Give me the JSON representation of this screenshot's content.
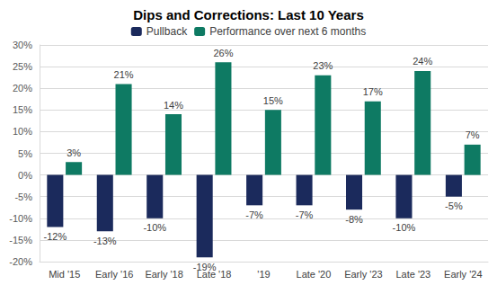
{
  "chart_data": {
    "type": "bar",
    "title": "Dips and Corrections: Last 10 Years",
    "categories": [
      "Mid '15",
      "Early '16",
      "Early '18",
      "Late '18",
      "'19",
      "Late '20",
      "Early '23",
      "Late '23",
      "Early '24"
    ],
    "series": [
      {
        "name": "Pullback",
        "color": "#1B2A5C",
        "values": [
          -12,
          -13,
          -10,
          -19,
          -7,
          -7,
          -8,
          -10,
          -5
        ],
        "value_labels": [
          "-12%",
          "-13%",
          "-10%",
          "-19%",
          "-7%",
          "-7%",
          "-8%",
          "-10%",
          "-5%"
        ]
      },
      {
        "name": "Performance over next 6 months",
        "color": "#0E7A63",
        "values": [
          3,
          21,
          14,
          26,
          15,
          23,
          17,
          24,
          7
        ],
        "value_labels": [
          "3%",
          "21%",
          "14%",
          "26%",
          "15%",
          "23%",
          "17%",
          "24%",
          "7%"
        ]
      }
    ],
    "ylim": [
      -20,
      30
    ],
    "yticks": [
      {
        "value": -20,
        "label": "-20%"
      },
      {
        "value": -15,
        "label": "-15%"
      },
      {
        "value": -10,
        "label": "-10%"
      },
      {
        "value": -5,
        "label": "-5%"
      },
      {
        "value": 0,
        "label": "0%"
      },
      {
        "value": 5,
        "label": "5%"
      },
      {
        "value": 10,
        "label": "10%"
      },
      {
        "value": 15,
        "label": "15%"
      },
      {
        "value": 20,
        "label": "20%"
      },
      {
        "value": 25,
        "label": "25%"
      },
      {
        "value": 30,
        "label": "30%"
      }
    ],
    "grid": true,
    "data_labels": true,
    "legend": "top"
  }
}
